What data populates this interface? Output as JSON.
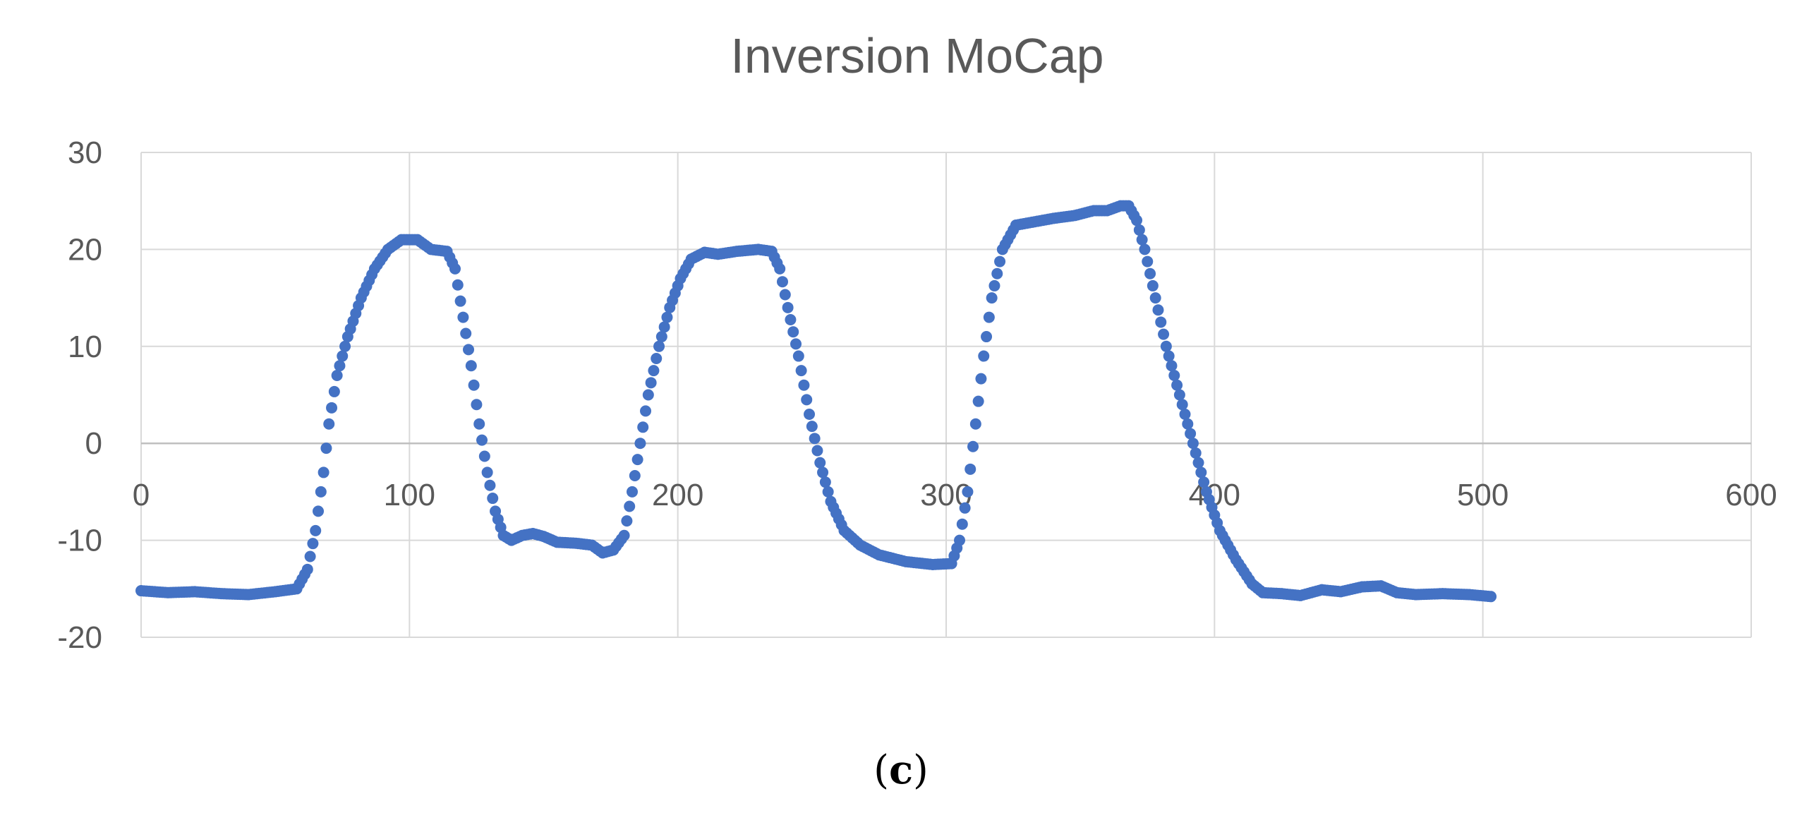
{
  "chart_data": {
    "type": "scatter",
    "title": "Inversion MoCap",
    "xlabel": "",
    "ylabel": "",
    "xlim": [
      0,
      600
    ],
    "ylim": [
      -20,
      30
    ],
    "x_ticks": [
      0,
      100,
      200,
      300,
      400,
      500,
      600
    ],
    "y_ticks": [
      -20,
      -10,
      0,
      10,
      20,
      30
    ],
    "gridlines": true,
    "legend": "none",
    "marker_color": "#4472C4",
    "series": [
      {
        "name": "Inversion MoCap",
        "anchors": [
          [
            0,
            -15.2
          ],
          [
            10,
            -15.4
          ],
          [
            20,
            -15.3
          ],
          [
            30,
            -15.5
          ],
          [
            40,
            -15.6
          ],
          [
            50,
            -15.3
          ],
          [
            58,
            -15.0
          ],
          [
            62,
            -13.0
          ],
          [
            65,
            -9.0
          ],
          [
            68,
            -3.0
          ],
          [
            70,
            2.0
          ],
          [
            73,
            7.0
          ],
          [
            77,
            11.0
          ],
          [
            82,
            15.0
          ],
          [
            87,
            18.0
          ],
          [
            92,
            20.0
          ],
          [
            97,
            21.0
          ],
          [
            103,
            21.0
          ],
          [
            108,
            20.0
          ],
          [
            114,
            19.8
          ],
          [
            117,
            18.0
          ],
          [
            120,
            13.0
          ],
          [
            123,
            8.0
          ],
          [
            126,
            2.0
          ],
          [
            129,
            -3.0
          ],
          [
            132,
            -7.0
          ],
          [
            135,
            -9.5
          ],
          [
            138,
            -10.0
          ],
          [
            142,
            -9.5
          ],
          [
            146,
            -9.3
          ],
          [
            150,
            -9.6
          ],
          [
            155,
            -10.2
          ],
          [
            162,
            -10.3
          ],
          [
            168,
            -10.5
          ],
          [
            172,
            -11.3
          ],
          [
            176,
            -11.0
          ],
          [
            180,
            -9.5
          ],
          [
            183,
            -5.0
          ],
          [
            186,
            0.0
          ],
          [
            189,
            5.0
          ],
          [
            193,
            10.0
          ],
          [
            197,
            14.0
          ],
          [
            201,
            17.0
          ],
          [
            205,
            19.0
          ],
          [
            210,
            19.7
          ],
          [
            215,
            19.5
          ],
          [
            222,
            19.8
          ],
          [
            230,
            20.0
          ],
          [
            235,
            19.8
          ],
          [
            238,
            18.0
          ],
          [
            241,
            14.0
          ],
          [
            245,
            9.0
          ],
          [
            249,
            3.0
          ],
          [
            253,
            -2.0
          ],
          [
            257,
            -6.0
          ],
          [
            262,
            -9.0
          ],
          [
            268,
            -10.5
          ],
          [
            275,
            -11.5
          ],
          [
            285,
            -12.2
          ],
          [
            295,
            -12.5
          ],
          [
            302,
            -12.4
          ],
          [
            305,
            -10.0
          ],
          [
            308,
            -5.0
          ],
          [
            311,
            2.0
          ],
          [
            314,
            9.0
          ],
          [
            317,
            15.0
          ],
          [
            321,
            20.0
          ],
          [
            326,
            22.5
          ],
          [
            332,
            22.8
          ],
          [
            340,
            23.2
          ],
          [
            348,
            23.5
          ],
          [
            355,
            24.0
          ],
          [
            360,
            24.0
          ],
          [
            365,
            24.5
          ],
          [
            368,
            24.5
          ],
          [
            371,
            23.0
          ],
          [
            374,
            20.0
          ],
          [
            378,
            15.0
          ],
          [
            382,
            10.0
          ],
          [
            387,
            5.0
          ],
          [
            392,
            0.0
          ],
          [
            397,
            -5.0
          ],
          [
            402,
            -9.0
          ],
          [
            408,
            -12.0
          ],
          [
            414,
            -14.5
          ],
          [
            418,
            -15.4
          ],
          [
            425,
            -15.5
          ],
          [
            432,
            -15.7
          ],
          [
            440,
            -15.1
          ],
          [
            447,
            -15.3
          ],
          [
            455,
            -14.8
          ],
          [
            462,
            -14.7
          ],
          [
            468,
            -15.4
          ],
          [
            475,
            -15.6
          ],
          [
            485,
            -15.5
          ],
          [
            495,
            -15.6
          ],
          [
            503,
            -15.8
          ]
        ]
      }
    ]
  },
  "caption": {
    "open": "(",
    "letter": "c",
    "close": ")"
  }
}
